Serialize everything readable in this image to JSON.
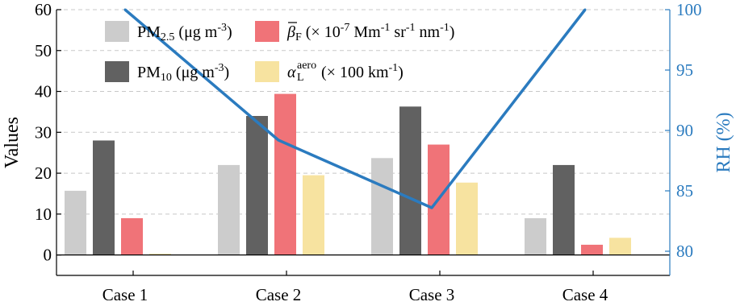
{
  "chart_data": {
    "type": "bar",
    "categories": [
      "Case 1",
      "Case 2",
      "Case 3",
      "Case 4"
    ],
    "ylabel": "Values",
    "ylim": [
      -5,
      60
    ],
    "yticks": [
      0,
      10,
      20,
      30,
      40,
      50,
      60
    ],
    "y2label": "RH (%)",
    "y2lim": [
      78,
      100
    ],
    "y2ticks": [
      80,
      85,
      90,
      95,
      100
    ],
    "grid": "horizontal dashed",
    "legend_position": "top-left",
    "series": [
      {
        "name": "PM2.5 (μg m-3)",
        "legend_parts": {
          "base": "PM",
          "sub": "2.5",
          "unit_pre": " (μg m",
          "unit_sup": "-3",
          "unit_post": ")"
        },
        "color": "#cccccc",
        "values": [
          15.7,
          22.0,
          23.7,
          9.0
        ]
      },
      {
        "name": "PM10 (μg m-3)",
        "legend_parts": {
          "base": "PM",
          "sub": "10",
          "unit_pre": " (μg m",
          "unit_sup": "-3",
          "unit_post": ")"
        },
        "color": "#616161",
        "values": [
          28.0,
          34.0,
          36.3,
          22.0
        ]
      },
      {
        "name": "β̄F (× 10-7 Mm-1 sr-1 nm-1)",
        "legend_parts": {
          "base": "β",
          "sub": "F",
          "text": " (× 10",
          "s1": "-7",
          "t2": " Mm",
          "s2": "-1",
          "t3": " sr",
          "s3": "-1",
          "t4": " nm",
          "s4": "-1",
          "t5": ")"
        },
        "color": "#f07378",
        "values": [
          9.0,
          39.4,
          27.0,
          2.5
        ]
      },
      {
        "name": "αLaero (× 100 km-1)",
        "legend_parts": {
          "base": "α",
          "sub": "L",
          "sup": "aero",
          "text": "(× 100 km",
          "s1": "-1",
          "t2": ")"
        },
        "color": "#f7e3a0",
        "values": [
          0.3,
          19.5,
          17.7,
          4.2
        ]
      }
    ],
    "line_series": {
      "name": "RH (%)",
      "axis": "right",
      "color": "#2b7bbf",
      "values": [
        100.0,
        89.2,
        83.6,
        100.0
      ]
    }
  }
}
